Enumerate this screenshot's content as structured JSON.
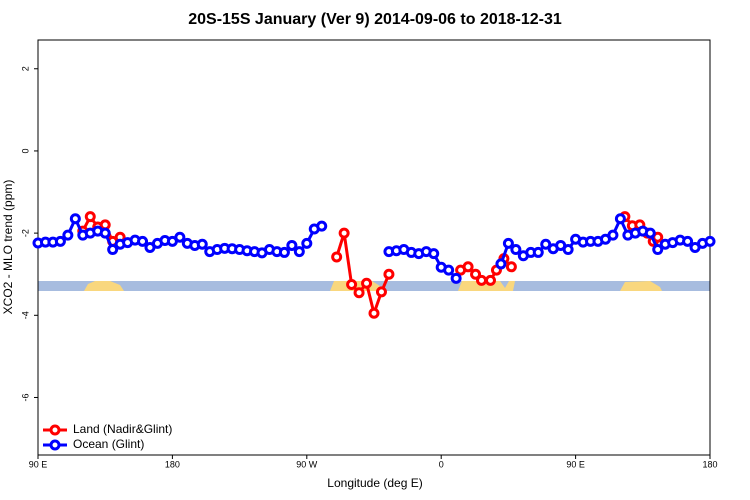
{
  "chart_data": {
    "type": "line",
    "title": "20S-15S January (Ver 9)   2014-09-06 to 2018-12-31",
    "x_label": "Longitude (deg E)",
    "y_label": "XCO2 - MLO trend (ppm)",
    "xlim": [
      90,
      540
    ],
    "ylim": [
      -7.4,
      2.7
    ],
    "xticks": [
      {
        "value": 90,
        "label": "90 E"
      },
      180,
      {
        "value": 270,
        "label": "90 W"
      },
      {
        "value": 360,
        "label": "0"
      },
      {
        "value": 450,
        "label": "90 E"
      },
      {
        "value": 540,
        "label": "180"
      }
    ],
    "yticks": [
      -6,
      -4,
      -2,
      0,
      2
    ],
    "legend": "bottom-left",
    "series": [
      {
        "name": "Land (Nadir&Glint)",
        "color": "#ff0000",
        "x": [
          120,
          125,
          130,
          135,
          140,
          145,
          null,
          290,
          295,
          300,
          305,
          310,
          315,
          320,
          325,
          null,
          373,
          378,
          383,
          387,
          393,
          397,
          402,
          407,
          null,
          483,
          488,
          493,
          498,
          502,
          505
        ],
        "values": [
          -1.95,
          -1.6,
          -1.85,
          -1.8,
          -2.2,
          -2.1,
          null,
          -2.58,
          -2.0,
          -3.25,
          -3.45,
          -3.22,
          -3.95,
          -3.43,
          -3.0,
          null,
          -2.9,
          -2.82,
          -3.0,
          -3.15,
          -3.15,
          -2.9,
          -2.62,
          -2.82,
          null,
          -1.6,
          -1.82,
          -1.8,
          -2.0,
          -2.2,
          -2.1
        ]
      },
      {
        "name": "Ocean (Glint)",
        "color": "#0000ff",
        "x": [
          90,
          95,
          100,
          105,
          110,
          115,
          120,
          125,
          130,
          135,
          140,
          145,
          150,
          155,
          160,
          165,
          170,
          175,
          180,
          185,
          190,
          195,
          200,
          205,
          210,
          215,
          220,
          225,
          230,
          235,
          240,
          245,
          250,
          255,
          260,
          265,
          270,
          275,
          280,
          285,
          290,
          295,
          300,
          305,
          310,
          315,
          320,
          325,
          330,
          335,
          340,
          345,
          350,
          355,
          360,
          365,
          370,
          375,
          380,
          385,
          390,
          395,
          400,
          405,
          410,
          415,
          420,
          425,
          430,
          435,
          440,
          445,
          450,
          455,
          460,
          465,
          470,
          475,
          480,
          485,
          490,
          495,
          500,
          505,
          510,
          515,
          520,
          525,
          530,
          535,
          540
        ],
        "values": [
          -2.24,
          -2.22,
          -2.22,
          -2.2,
          -2.05,
          -1.65,
          -2.05,
          -2.0,
          -1.95,
          -2.0,
          -2.4,
          -2.27,
          -2.23,
          -2.17,
          -2.2,
          -2.35,
          -2.25,
          -2.18,
          -2.2,
          -2.1,
          -2.25,
          -2.3,
          -2.27,
          -2.45,
          -2.4,
          -2.37,
          -2.38,
          -2.4,
          -2.43,
          -2.45,
          -2.48,
          -2.4,
          -2.45,
          -2.47,
          -2.3,
          -2.45,
          -2.25,
          -1.9,
          -1.83,
          null,
          null,
          null,
          null,
          null,
          null,
          null,
          null,
          -2.45,
          -2.43,
          -2.4,
          -2.47,
          -2.5,
          -2.45,
          -2.5,
          -2.83,
          -2.9,
          -3.1,
          null,
          null,
          null,
          null,
          null,
          -2.75,
          -2.25,
          -2.4,
          -2.55,
          -2.47,
          -2.47,
          -2.27,
          -2.38,
          -2.3,
          -2.4,
          -2.15,
          -2.22,
          -2.2,
          -2.2,
          -2.15,
          -2.05,
          -1.65,
          -2.05,
          -2.0,
          -1.95,
          -2.0,
          -2.4,
          -2.27,
          -2.23,
          -2.17,
          -2.2,
          -2.35,
          -2.25,
          -2.2
        ]
      }
    ]
  }
}
